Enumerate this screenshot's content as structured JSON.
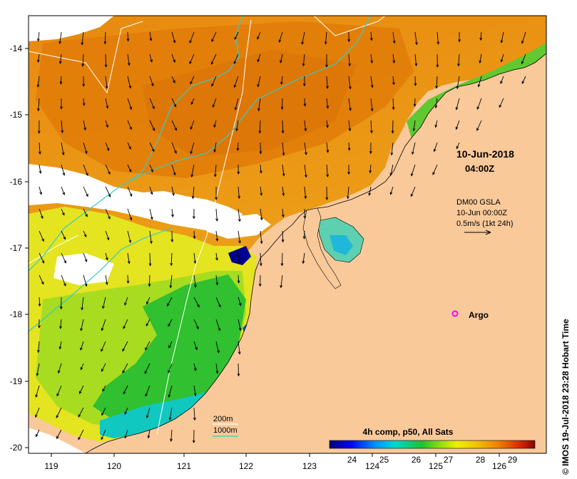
{
  "map": {
    "x_ticks": [
      "119",
      "120",
      "121",
      "122",
      "123",
      "124",
      "125",
      "126"
    ],
    "y_ticks": [
      "-14",
      "-15",
      "-16",
      "-17",
      "-18",
      "-19",
      "-20"
    ],
    "timestamp_date": "10-Jun-2018",
    "timestamp_time": "04:00Z",
    "current_label_line1": "DM00 GSLA",
    "current_label_line2": "10-Jun 00:00Z",
    "current_label_line3": "0.5m/s (1kt 24h)",
    "argo_label": "Argo",
    "isobath_200": "200m",
    "isobath_1000": "1000m",
    "credit": "© IMOS 19-Jul-2018 23:28 Hobart Time",
    "colors": {
      "land": "#f9c99a",
      "cloud": "#ffffff",
      "argo_marker": "#ff00ff",
      "isobath_200": "#ffffff",
      "isobath_1000": "#33cccc"
    }
  },
  "colorbar": {
    "title": "4h comp, p50, All Sats",
    "ticks": [
      "24",
      "25",
      "26",
      "27",
      "28",
      "29"
    ],
    "min": 23.3,
    "max": 29.7
  }
}
